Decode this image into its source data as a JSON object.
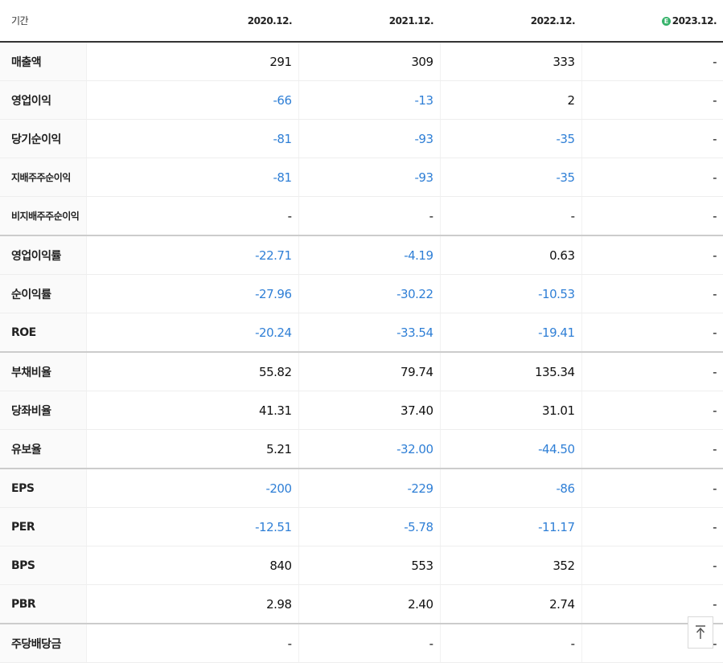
{
  "header": {
    "label": "기간",
    "periods": [
      "2020.12.",
      "2021.12.",
      "2022.12.",
      "2023.12."
    ],
    "estimate_badge": "E"
  },
  "rows": [
    {
      "label": "매출액",
      "values": [
        "291",
        "309",
        "333",
        "-"
      ]
    },
    {
      "label": "영업이익",
      "values": [
        "-66",
        "-13",
        "2",
        "-"
      ]
    },
    {
      "label": "당기순이익",
      "values": [
        "-81",
        "-93",
        "-35",
        "-"
      ]
    },
    {
      "label": "지배주주순이익",
      "values": [
        "-81",
        "-93",
        "-35",
        "-"
      ]
    },
    {
      "label": "비지배주주순이익",
      "values": [
        "-",
        "-",
        "-",
        "-"
      ]
    },
    {
      "label": "영업이익률",
      "values": [
        "-22.71",
        "-4.19",
        "0.63",
        "-"
      ]
    },
    {
      "label": "순이익률",
      "values": [
        "-27.96",
        "-30.22",
        "-10.53",
        "-"
      ]
    },
    {
      "label": "ROE",
      "values": [
        "-20.24",
        "-33.54",
        "-19.41",
        "-"
      ]
    },
    {
      "label": "부채비율",
      "values": [
        "55.82",
        "79.74",
        "135.34",
        "-"
      ]
    },
    {
      "label": "당좌비율",
      "values": [
        "41.31",
        "37.40",
        "31.01",
        "-"
      ]
    },
    {
      "label": "유보율",
      "values": [
        "5.21",
        "-32.00",
        "-44.50",
        "-"
      ]
    },
    {
      "label": "EPS",
      "values": [
        "-200",
        "-229",
        "-86",
        "-"
      ]
    },
    {
      "label": "PER",
      "values": [
        "-12.51",
        "-5.78",
        "-11.17",
        "-"
      ]
    },
    {
      "label": "BPS",
      "values": [
        "840",
        "553",
        "352",
        "-"
      ]
    },
    {
      "label": "PBR",
      "values": [
        "2.98",
        "2.40",
        "2.74",
        "-"
      ]
    },
    {
      "label": "주당배당금",
      "values": [
        "-",
        "-",
        "-",
        "-"
      ]
    }
  ],
  "colors": {
    "negative": "#2f7fd6",
    "estimate_badge": "#37b36b"
  },
  "icons": {
    "scroll_top": "arrow-up-to-line-icon"
  }
}
